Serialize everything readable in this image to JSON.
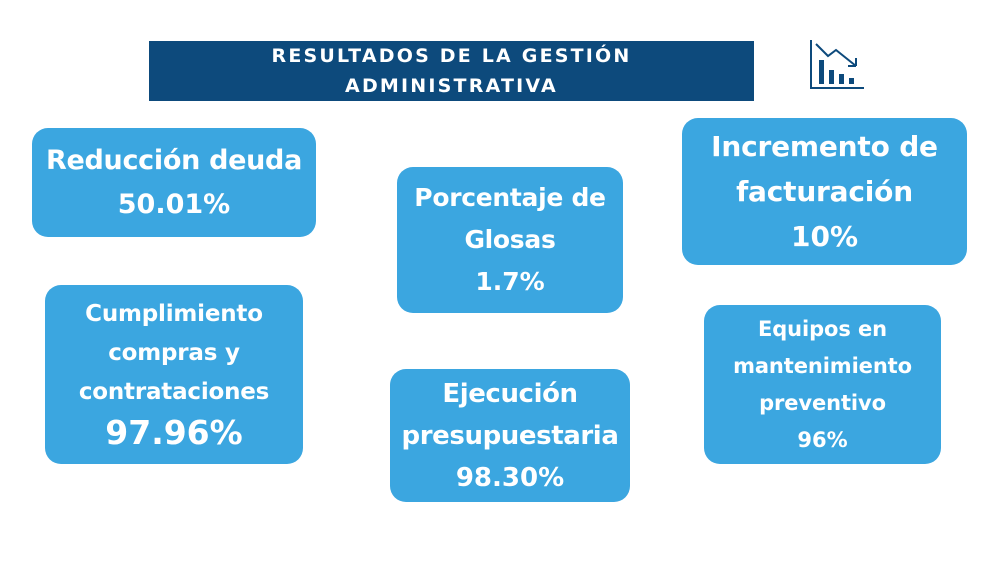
{
  "header": {
    "title_line1": "RESULTADOS DE LA GESTIÓN",
    "title_line2": "ADMINISTRATIVA",
    "icon": "declining-bar-chart-icon",
    "title_bg": "#0d4a7c"
  },
  "cards": {
    "deuda": {
      "label_lines": [
        "Reducción deuda"
      ],
      "value": "50.01%"
    },
    "glosas": {
      "label_lines": [
        "Porcentaje de",
        "Glosas"
      ],
      "value": "1.7%"
    },
    "facturacion": {
      "label_lines": [
        "Incremento de",
        "facturación"
      ],
      "value": "10%"
    },
    "compras": {
      "label_lines": [
        "Cumplimiento",
        "compras y",
        "contrataciones"
      ],
      "value": "97.96%"
    },
    "ejecucion": {
      "label_lines": [
        "Ejecución",
        "presupuestaria"
      ],
      "value": "98.30%"
    },
    "equipos": {
      "label_lines": [
        "Equipos en",
        "mantenimiento",
        "preventivo"
      ],
      "value": "96%"
    }
  },
  "colors": {
    "card_bg": "#3ba6e0",
    "text": "#ffffff",
    "icon": "#0d4a7c"
  }
}
